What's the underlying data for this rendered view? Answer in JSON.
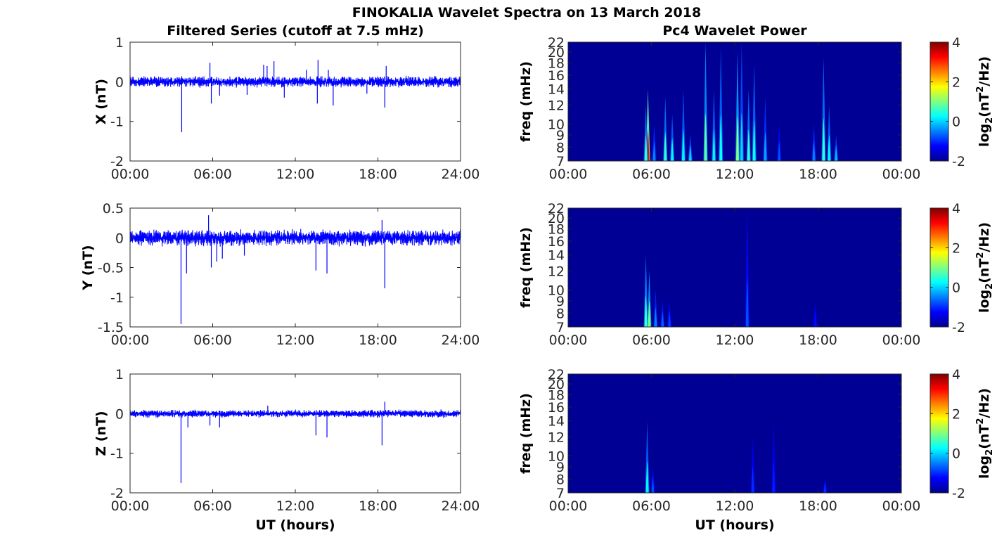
{
  "figure": {
    "title": "FINOKALIA Wavelet Spectra on 13 March 2018",
    "left_column_title": "Filtered Series (cutoff at 7.5 mHz)",
    "right_column_title": "Pc4 Wavelet Power",
    "xlabel": "UT (hours)"
  },
  "chart_data": [
    {
      "type": "line",
      "component": "X",
      "ylabel": "X (nT)",
      "xlabel": "",
      "ylim": [
        -2,
        1
      ],
      "yticks": [
        "-2",
        "-1",
        "0",
        "1"
      ],
      "xlim_hours": [
        0,
        24
      ],
      "xticks": [
        "00:00",
        "06:00",
        "12:00",
        "18:00",
        "24:00"
      ],
      "series": [
        {
          "color": "#0000ff",
          "noise_band_nT": 0.1,
          "spikes": [
            {
              "t": 3.75,
              "v": -1.27
            },
            {
              "t": 5.8,
              "v": 0.48
            },
            {
              "t": 5.9,
              "v": -0.55
            },
            {
              "t": 6.5,
              "v": -0.35
            },
            {
              "t": 8.5,
              "v": -0.33
            },
            {
              "t": 9.7,
              "v": 0.43
            },
            {
              "t": 9.95,
              "v": 0.4
            },
            {
              "t": 10.45,
              "v": 0.52
            },
            {
              "t": 11.2,
              "v": -0.4
            },
            {
              "t": 12.8,
              "v": 0.3
            },
            {
              "t": 13.6,
              "v": -0.55
            },
            {
              "t": 13.65,
              "v": 0.55
            },
            {
              "t": 14.4,
              "v": 0.3
            },
            {
              "t": 14.75,
              "v": -0.6
            },
            {
              "t": 17.2,
              "v": -0.3
            },
            {
              "t": 18.5,
              "v": -0.65
            },
            {
              "t": 18.6,
              "v": 0.4
            }
          ]
        }
      ]
    },
    {
      "type": "line",
      "component": "Y",
      "ylabel": "Y (nT)",
      "xlabel": "",
      "ylim": [
        -1.5,
        0.5
      ],
      "yticks": [
        "-1.5",
        "-1",
        "-0.5",
        "0",
        "0.5"
      ],
      "xlim_hours": [
        0,
        24
      ],
      "xticks": [
        "00:00",
        "06:00",
        "12:00",
        "18:00",
        "24:00"
      ],
      "series": [
        {
          "color": "#0000ff",
          "noise_band_nT": 0.1,
          "spikes": [
            {
              "t": 3.7,
              "v": -1.45
            },
            {
              "t": 4.1,
              "v": -0.6
            },
            {
              "t": 5.7,
              "v": 0.38
            },
            {
              "t": 5.9,
              "v": -0.5
            },
            {
              "t": 6.3,
              "v": -0.4
            },
            {
              "t": 6.7,
              "v": -0.35
            },
            {
              "t": 8.3,
              "v": -0.3
            },
            {
              "t": 13.5,
              "v": -0.55
            },
            {
              "t": 14.3,
              "v": -0.6
            },
            {
              "t": 18.3,
              "v": 0.3
            },
            {
              "t": 18.5,
              "v": -0.85
            }
          ]
        }
      ]
    },
    {
      "type": "line",
      "component": "Z",
      "ylabel": "Z (nT)",
      "xlabel": "UT (hours)",
      "ylim": [
        -2,
        1
      ],
      "yticks": [
        "-2",
        "-1",
        "0",
        "1"
      ],
      "xlim_hours": [
        0,
        24
      ],
      "xticks": [
        "00:00",
        "06:00",
        "12:00",
        "18:00",
        "24:00"
      ],
      "series": [
        {
          "color": "#0000ff",
          "noise_band_nT": 0.07,
          "spikes": [
            {
              "t": 3.7,
              "v": -1.75
            },
            {
              "t": 4.2,
              "v": -0.35
            },
            {
              "t": 5.8,
              "v": -0.3
            },
            {
              "t": 6.5,
              "v": -0.35
            },
            {
              "t": 10.0,
              "v": 0.2
            },
            {
              "t": 13.5,
              "v": -0.55
            },
            {
              "t": 14.3,
              "v": -0.6
            },
            {
              "t": 18.3,
              "v": -0.8
            },
            {
              "t": 18.5,
              "v": 0.3
            }
          ]
        }
      ]
    },
    {
      "type": "heatmap",
      "component": "X",
      "ylabel": "freq (mHz)",
      "xlabel": "",
      "yticks": [
        "7",
        "8",
        "9",
        "10",
        "12",
        "14",
        "16",
        "18",
        "20",
        "22"
      ],
      "ylim_mHz": [
        7,
        22
      ],
      "xlim_hours": [
        0,
        24
      ],
      "xticks": [
        "00:00",
        "06:00",
        "12:00",
        "18:00",
        "00:00"
      ],
      "colorbar": {
        "label": "log2(nT2/Hz)",
        "range": [
          -2,
          4
        ],
        "ticks": [
          "-2",
          "0",
          "2",
          "4"
        ]
      },
      "background_level": -2,
      "bursts": [
        {
          "t": 5.75,
          "fmax": 14,
          "level": 3.2
        },
        {
          "t": 5.6,
          "fmax": 12,
          "level": 0.5
        },
        {
          "t": 6.2,
          "fmax": 10,
          "level": -0.5
        },
        {
          "t": 7.0,
          "fmax": 13,
          "level": 0.5
        },
        {
          "t": 7.5,
          "fmax": 11,
          "level": 0.2
        },
        {
          "t": 8.3,
          "fmax": 14,
          "level": 0.2
        },
        {
          "t": 8.8,
          "fmax": 9,
          "level": 0.0
        },
        {
          "t": 9.9,
          "fmax": 22,
          "level": 0.8
        },
        {
          "t": 10.5,
          "fmax": 14,
          "level": 0.2
        },
        {
          "t": 11.0,
          "fmax": 21,
          "level": 0.3
        },
        {
          "t": 12.2,
          "fmax": 20,
          "level": 1.0
        },
        {
          "t": 12.5,
          "fmax": 22,
          "level": 0.0
        },
        {
          "t": 13.0,
          "fmax": 14,
          "level": 0.5
        },
        {
          "t": 13.4,
          "fmax": 18,
          "level": 0.3
        },
        {
          "t": 14.2,
          "fmax": 13,
          "level": -0.3
        },
        {
          "t": 15.2,
          "fmax": 10,
          "level": -0.8
        },
        {
          "t": 17.7,
          "fmax": 10,
          "level": -0.5
        },
        {
          "t": 18.4,
          "fmax": 19,
          "level": 0.5
        },
        {
          "t": 18.8,
          "fmax": 12,
          "level": 0.2
        },
        {
          "t": 19.3,
          "fmax": 9,
          "level": -0.2
        }
      ]
    },
    {
      "type": "heatmap",
      "component": "Y",
      "ylabel": "freq (mHz)",
      "xlabel": "",
      "yticks": [
        "7",
        "8",
        "9",
        "10",
        "12",
        "14",
        "16",
        "18",
        "20",
        "22"
      ],
      "ylim_mHz": [
        7,
        22
      ],
      "xlim_hours": [
        0,
        24
      ],
      "xticks": [
        "00:00",
        "06:00",
        "12:00",
        "18:00",
        "00:00"
      ],
      "colorbar": {
        "label": "log2(nT2/Hz)",
        "range": [
          -2,
          4
        ],
        "ticks": [
          "-2",
          "0",
          "2",
          "4"
        ]
      },
      "background_level": -2,
      "bursts": [
        {
          "t": 5.6,
          "fmax": 14,
          "level": 0.6
        },
        {
          "t": 5.85,
          "fmax": 12,
          "level": 0.9
        },
        {
          "t": 6.3,
          "fmax": 10,
          "level": -0.5
        },
        {
          "t": 6.8,
          "fmax": 9,
          "level": -0.7
        },
        {
          "t": 7.3,
          "fmax": 9,
          "level": -0.9
        },
        {
          "t": 12.9,
          "fmax": 22,
          "level": -0.8
        },
        {
          "t": 17.8,
          "fmax": 9,
          "level": -1.2
        }
      ]
    },
    {
      "type": "heatmap",
      "component": "Z",
      "ylabel": "freq (mHz)",
      "xlabel": "UT (hours)",
      "yticks": [
        "7",
        "8",
        "9",
        "10",
        "12",
        "14",
        "16",
        "18",
        "20",
        "22"
      ],
      "ylim_mHz": [
        7,
        22
      ],
      "xlim_hours": [
        0,
        24
      ],
      "xticks": [
        "00:00",
        "06:00",
        "12:00",
        "18:00",
        "00:00"
      ],
      "colorbar": {
        "label": "log2(nT2/Hz)",
        "range": [
          -2,
          4
        ],
        "ticks": [
          "-2",
          "0",
          "2",
          "4"
        ]
      },
      "background_level": -2,
      "bursts": [
        {
          "t": 5.7,
          "fmax": 14,
          "level": 0.2
        },
        {
          "t": 6.1,
          "fmax": 9,
          "level": -0.8
        },
        {
          "t": 13.3,
          "fmax": 12,
          "level": -1.0
        },
        {
          "t": 14.8,
          "fmax": 14,
          "level": -1.1
        },
        {
          "t": 18.5,
          "fmax": 8,
          "level": -1.0
        }
      ]
    }
  ]
}
